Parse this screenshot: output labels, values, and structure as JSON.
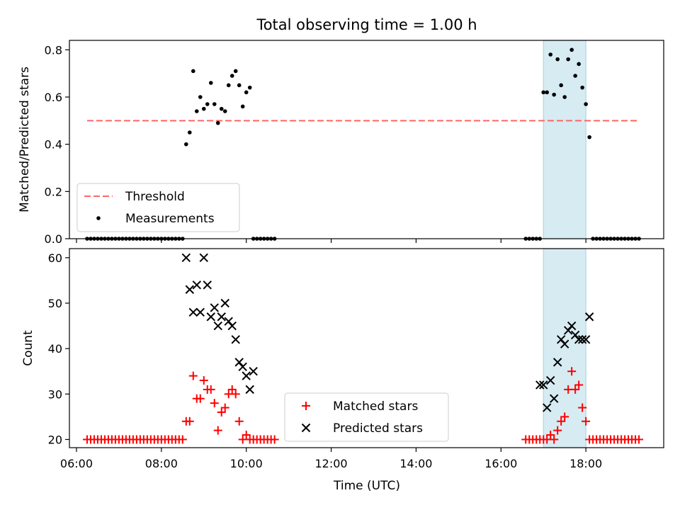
{
  "chart_data": {
    "title": "Total observing time = 1.00 h",
    "type": "scatter",
    "x_axis": {
      "label": "Time (UTC)",
      "range": [
        "05:50",
        "19:50"
      ],
      "ticks": [
        "06:00",
        "08:00",
        "10:00",
        "12:00",
        "14:00",
        "16:00",
        "18:00"
      ]
    },
    "highlight_span": {
      "start": "17:00",
      "end": "18:00",
      "color": "#add8e6"
    },
    "panels": [
      {
        "ylabel": "Matched/Predicted stars",
        "ylim": [
          0,
          0.84
        ],
        "yticks": [
          "0.0",
          "0.2",
          "0.4",
          "0.6",
          "0.8"
        ],
        "legend_position": "lower left",
        "series": [
          {
            "name": "Threshold",
            "kind": "dashed-line",
            "color": "#ff6666",
            "x": [
              "06:15",
              "19:15"
            ],
            "y": [
              0.5,
              0.5
            ]
          },
          {
            "name": "Measurements",
            "kind": "dot",
            "color": "#000000",
            "x": [
              "06:15",
              "06:20",
              "06:25",
              "06:30",
              "06:35",
              "06:40",
              "06:45",
              "06:50",
              "06:55",
              "07:00",
              "07:05",
              "07:10",
              "07:15",
              "07:20",
              "07:25",
              "07:30",
              "07:35",
              "07:40",
              "07:45",
              "07:50",
              "07:55",
              "08:00",
              "08:05",
              "08:10",
              "08:15",
              "08:20",
              "08:25",
              "08:30",
              "08:35",
              "08:40",
              "08:45",
              "08:50",
              "08:55",
              "09:00",
              "09:05",
              "09:10",
              "09:15",
              "09:20",
              "09:25",
              "09:30",
              "09:35",
              "09:40",
              "09:45",
              "09:50",
              "09:55",
              "10:00",
              "10:05",
              "10:10",
              "10:15",
              "10:20",
              "10:25",
              "10:30",
              "10:35",
              "10:40",
              "16:35",
              "16:40",
              "16:45",
              "16:50",
              "16:55",
              "17:00",
              "17:05",
              "17:10",
              "17:15",
              "17:20",
              "17:25",
              "17:30",
              "17:35",
              "17:40",
              "17:45",
              "17:50",
              "17:55",
              "18:00",
              "18:05",
              "18:10",
              "18:15",
              "18:20",
              "18:25",
              "18:30",
              "18:35",
              "18:40",
              "18:45",
              "18:50",
              "18:55",
              "19:00",
              "19:05",
              "19:10",
              "19:15"
            ],
            "y": [
              0,
              0,
              0,
              0,
              0,
              0,
              0,
              0,
              0,
              0,
              0,
              0,
              0,
              0,
              0,
              0,
              0,
              0,
              0,
              0,
              0,
              0,
              0,
              0,
              0,
              0,
              0,
              0,
              0.4,
              0.45,
              0.71,
              0.54,
              0.6,
              0.55,
              0.57,
              0.66,
              0.57,
              0.49,
              0.55,
              0.54,
              0.65,
              0.69,
              0.71,
              0.65,
              0.56,
              0.62,
              0.64,
              0,
              0,
              0,
              0,
              0,
              0,
              0,
              0,
              0,
              0,
              0,
              0,
              0.62,
              0.62,
              0.78,
              0.61,
              0.76,
              0.65,
              0.6,
              0.76,
              0.8,
              0.69,
              0.74,
              0.64,
              0.57,
              0.43,
              0,
              0,
              0,
              0,
              0,
              0,
              0,
              0,
              0,
              0,
              0,
              0,
              0,
              0
            ]
          }
        ]
      },
      {
        "ylabel": "Count",
        "ylim": [
          18.2,
          62
        ],
        "yticks": [
          "20",
          "30",
          "40",
          "50",
          "60"
        ],
        "legend_position": "lower center",
        "series": [
          {
            "name": "Matched stars",
            "kind": "plus",
            "color": "#ff0000",
            "x": [
              "06:15",
              "06:20",
              "06:25",
              "06:30",
              "06:35",
              "06:40",
              "06:45",
              "06:50",
              "06:55",
              "07:00",
              "07:05",
              "07:10",
              "07:15",
              "07:20",
              "07:25",
              "07:30",
              "07:35",
              "07:40",
              "07:45",
              "07:50",
              "07:55",
              "08:00",
              "08:05",
              "08:10",
              "08:15",
              "08:20",
              "08:25",
              "08:30",
              "08:35",
              "08:40",
              "08:45",
              "08:50",
              "08:55",
              "09:00",
              "09:05",
              "09:10",
              "09:15",
              "09:20",
              "09:25",
              "09:30",
              "09:35",
              "09:40",
              "09:45",
              "09:50",
              "09:55",
              "10:00",
              "10:05",
              "10:10",
              "10:15",
              "10:20",
              "10:25",
              "10:30",
              "10:35",
              "10:40",
              "16:35",
              "16:40",
              "16:45",
              "16:50",
              "16:55",
              "17:00",
              "17:05",
              "17:10",
              "17:15",
              "17:20",
              "17:25",
              "17:30",
              "17:35",
              "17:40",
              "17:45",
              "17:50",
              "17:55",
              "18:00",
              "18:05",
              "18:10",
              "18:15",
              "18:20",
              "18:25",
              "18:30",
              "18:35",
              "18:40",
              "18:45",
              "18:50",
              "18:55",
              "19:00",
              "19:05",
              "19:10",
              "19:15"
            ],
            "y": [
              20,
              20,
              20,
              20,
              20,
              20,
              20,
              20,
              20,
              20,
              20,
              20,
              20,
              20,
              20,
              20,
              20,
              20,
              20,
              20,
              20,
              20,
              20,
              20,
              20,
              20,
              20,
              20,
              24,
              24,
              34,
              29,
              29,
              33,
              31,
              31,
              28,
              22,
              26,
              27,
              30,
              31,
              30,
              24,
              20,
              21,
              20,
              20,
              20,
              20,
              20,
              20,
              20,
              20,
              20,
              20,
              20,
              20,
              20,
              20,
              20,
              21,
              20,
              22,
              24,
              25,
              31,
              35,
              31,
              32,
              27,
              24,
              20,
              20,
              20,
              20,
              20,
              20,
              20,
              20,
              20,
              20,
              20,
              20,
              20,
              20,
              20
            ]
          },
          {
            "name": "Predicted stars",
            "kind": "cross",
            "color": "#000000",
            "x": [
              "08:35",
              "08:40",
              "08:45",
              "08:50",
              "08:55",
              "09:00",
              "09:05",
              "09:10",
              "09:15",
              "09:20",
              "09:25",
              "09:30",
              "09:35",
              "09:40",
              "09:45",
              "09:50",
              "09:55",
              "10:00",
              "10:05",
              "10:10",
              "16:55",
              "17:00",
              "17:05",
              "17:10",
              "17:15",
              "17:20",
              "17:25",
              "17:30",
              "17:35",
              "17:40",
              "17:45",
              "17:50",
              "17:55",
              "18:00",
              "18:05"
            ],
            "y": [
              60,
              53,
              48,
              54,
              48,
              60,
              54,
              47,
              49,
              45,
              47,
              50,
              46,
              45,
              42,
              37,
              36,
              34,
              31,
              35,
              32,
              32,
              27,
              33,
              29,
              37,
              42,
              41,
              44,
              45,
              43,
              42,
              42,
              42,
              47
            ]
          }
        ]
      }
    ]
  }
}
